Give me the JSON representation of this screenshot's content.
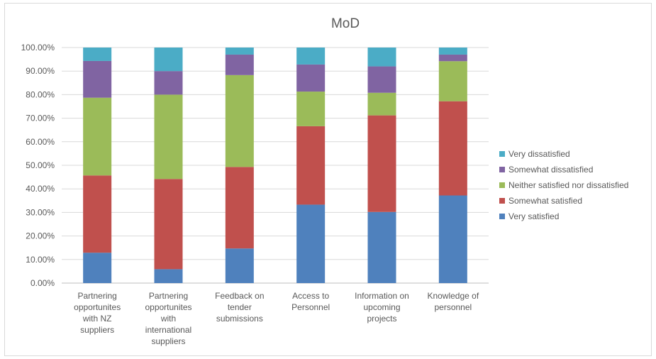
{
  "chart_data": {
    "type": "bar",
    "stacked": true,
    "title": "MoD",
    "categories": [
      [
        "Partnering",
        "opportunites",
        "with NZ",
        "suppliers"
      ],
      [
        "Partnering",
        "opportunites",
        "with",
        "international",
        "suppliers"
      ],
      [
        "Feedback on",
        "tender",
        "submissions"
      ],
      [
        "Access to",
        "Personnel"
      ],
      [
        "Information on",
        "upcoming",
        "projects"
      ],
      [
        "Knowledge of",
        "personnel"
      ]
    ],
    "ylim": [
      0,
      100
    ],
    "yticks": [
      "0.00%",
      "10.00%",
      "20.00%",
      "30.00%",
      "40.00%",
      "50.00%",
      "60.00%",
      "70.00%",
      "80.00%",
      "90.00%",
      "100.00%"
    ],
    "grid": true,
    "legend_position": "right",
    "series": [
      {
        "name": "Very satisfied",
        "color": "#4f81bd",
        "values": [
          12.9,
          5.9,
          14.7,
          33.3,
          30.2,
          37.2
        ]
      },
      {
        "name": "Somewhat satisfied",
        "color": "#c0504d",
        "values": [
          32.8,
          38.3,
          34.6,
          33.3,
          41.0,
          40.0
        ]
      },
      {
        "name": "Neither satisfied nor dissatisfied",
        "color": "#9bbb59",
        "values": [
          33.0,
          35.8,
          39.0,
          14.7,
          9.6,
          17.0
        ]
      },
      {
        "name": "Somewhat dissatisfied",
        "color": "#8064a2",
        "values": [
          15.6,
          10.0,
          8.7,
          11.5,
          11.2,
          2.8
        ]
      },
      {
        "name": "Very dissatisfied",
        "color": "#4bacc6",
        "values": [
          5.7,
          10.0,
          3.0,
          7.2,
          8.0,
          3.0
        ]
      }
    ]
  }
}
